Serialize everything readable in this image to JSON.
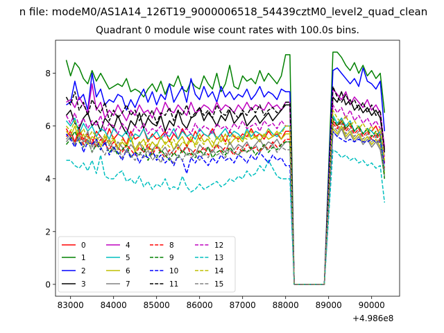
{
  "figure": {
    "suptitle": "n file: modeM0/AS1A14_126T19_9000006518_54439cztM0_level2_quad_clean",
    "title": "Quadrant 0 module wise count rates with 100.0s bins.",
    "x_offset_label": "+4.986e8"
  },
  "chart_data": {
    "type": "line",
    "title": "Quadrant 0 module wise count rates with 100.0s bins.",
    "xlabel": "",
    "ylabel": "",
    "x_offset": 498600000,
    "xlim": [
      82650,
      90650
    ],
    "ylim": [
      -0.45,
      9.25
    ],
    "xticks": [
      83000,
      84000,
      85000,
      86000,
      87000,
      88000,
      89000,
      90000
    ],
    "xtick_labels": [
      "83000",
      "84000",
      "85000",
      "86000",
      "87000",
      "88000",
      "89000",
      "90000"
    ],
    "yticks": [
      0,
      2,
      4,
      6,
      8
    ],
    "ytick_labels": [
      "0",
      "2",
      "4",
      "6",
      "8"
    ],
    "grid": false,
    "legend": {
      "placement": "lower-left",
      "columns": 4
    },
    "x_range": {
      "start": 82900,
      "step": 100,
      "end": 90300
    },
    "gap": {
      "drop_start": 88100,
      "zero_from": 88200,
      "zero_to": 88900,
      "rise_end": 89100
    },
    "series": [
      {
        "name": "0",
        "color": "#ff0000",
        "dash": "solid",
        "before": [
          5.6,
          5.8,
          5.4,
          5.9,
          5.5,
          5.7,
          5.3,
          5.8,
          5.6,
          5.4,
          5.9,
          5.5,
          5.7,
          5.6,
          5.3,
          5.8,
          5.5,
          5.6,
          5.9,
          5.4,
          5.7,
          5.5,
          5.6,
          5.8,
          5.4,
          5.7,
          5.5,
          5.9,
          5.6,
          5.4,
          5.8,
          5.5,
          5.7,
          5.6,
          5.9,
          5.5,
          5.7,
          5.4,
          5.8,
          5.6,
          5.5,
          5.7,
          5.6,
          5.9,
          5.6,
          5.7,
          5.5,
          5.8,
          5.6,
          5.7,
          5.5,
          5.8
        ],
        "after": [
          6.2,
          6.0,
          6.3,
          5.9,
          6.1,
          5.8,
          6.0,
          5.7,
          5.9,
          5.8,
          6.0,
          5.6,
          5.8,
          5.5
        ],
        "last": 4.6
      },
      {
        "name": "1",
        "color": "#008000",
        "dash": "solid",
        "before": [
          8.5,
          7.9,
          8.4,
          8.2,
          7.8,
          7.6,
          8.1,
          7.7,
          8.0,
          7.7,
          7.4,
          7.5,
          7.6,
          7.5,
          7.8,
          7.3,
          7.4,
          7.3,
          7.1,
          7.4,
          7.6,
          7.3,
          7.7,
          7.2,
          7.6,
          7.5,
          7.9,
          7.4,
          7.3,
          7.7,
          7.5,
          7.4,
          7.9,
          7.6,
          7.4,
          8.0,
          7.3,
          7.6,
          8.3,
          7.5,
          7.4,
          7.9,
          7.7,
          7.8,
          7.6,
          8.1,
          7.7,
          8.0,
          7.8,
          7.6,
          7.9,
          8.7
        ],
        "after": [
          8.8,
          8.8,
          8.6,
          8.3,
          8.1,
          8.4,
          8.0,
          8.3,
          7.9,
          8.1,
          7.8,
          8.0,
          7.9,
          7.7
        ],
        "last": 6.5
      },
      {
        "name": "2",
        "color": "#0000ff",
        "dash": "solid",
        "before": [
          6.8,
          6.9,
          7.7,
          7.0,
          7.2,
          6.6,
          8.0,
          7.1,
          7.4,
          6.8,
          7.0,
          6.9,
          7.2,
          7.1,
          6.6,
          7.0,
          6.7,
          7.1,
          7.4,
          6.9,
          7.3,
          6.8,
          7.2,
          7.0,
          7.6,
          6.9,
          7.2,
          7.5,
          6.9,
          7.8,
          7.2,
          7.0,
          7.5,
          7.1,
          7.3,
          6.9,
          7.5,
          7.1,
          7.3,
          7.0,
          7.2,
          7.1,
          7.4,
          7.0,
          7.2,
          7.5,
          7.1,
          7.3,
          7.2,
          7.0,
          7.4,
          7.3
        ],
        "after": [
          8.1,
          8.2,
          8.0,
          7.8,
          7.6,
          7.8,
          7.5,
          8.2,
          7.7,
          7.6,
          7.4,
          7.7,
          7.5,
          7.3
        ],
        "last": 5.8
      },
      {
        "name": "3",
        "color": "#000000",
        "dash": "solid",
        "before": [
          6.4,
          6.6,
          6.1,
          5.9,
          6.3,
          6.5,
          6.0,
          6.2,
          5.8,
          6.3,
          6.1,
          5.9,
          6.4,
          6.0,
          5.7,
          6.2,
          6.0,
          6.5,
          5.9,
          6.3,
          6.1,
          6.0,
          6.4,
          5.8,
          6.2,
          6.0,
          6.6,
          6.1,
          5.9,
          6.3,
          6.4,
          6.7,
          6.2,
          6.5,
          6.3,
          6.0,
          6.4,
          6.2,
          6.6,
          6.1,
          6.3,
          6.5,
          6.0,
          6.2,
          6.4,
          6.1,
          6.3,
          6.5,
          6.2,
          6.4,
          6.6,
          6.8
        ],
        "after": [
          7.1,
          6.9,
          7.3,
          6.8,
          7.0,
          6.6,
          6.8,
          6.5,
          6.7,
          6.4,
          6.6,
          6.3,
          6.4,
          6.2
        ],
        "last": 5.1
      },
      {
        "name": "4",
        "color": "#bf00bf",
        "dash": "solid",
        "before": [
          6.9,
          7.0,
          6.7,
          7.1,
          6.8,
          6.5,
          7.6,
          6.6,
          6.9,
          6.3,
          6.6,
          6.4,
          6.8,
          6.5,
          6.2,
          6.6,
          6.4,
          6.8,
          6.5,
          6.6,
          6.3,
          6.7,
          6.4,
          6.9,
          6.6,
          6.5,
          6.8,
          6.6,
          6.4,
          6.9,
          6.5,
          6.6,
          6.8,
          6.7,
          6.5,
          6.9,
          6.6,
          6.8,
          6.7,
          6.5,
          6.8,
          6.6,
          6.9,
          6.6,
          6.8,
          6.7,
          6.6,
          6.9,
          6.7,
          6.8,
          6.6,
          6.9
        ],
        "after": [
          7.4,
          7.2,
          7.0,
          7.3,
          6.8,
          7.1,
          6.9,
          6.7,
          7.0,
          6.6,
          6.8,
          6.5,
          6.7,
          6.3
        ],
        "last": 5.2
      },
      {
        "name": "5",
        "color": "#00bfbf",
        "dash": "solid",
        "before": [
          6.2,
          6.0,
          6.3,
          5.7,
          6.1,
          5.8,
          6.0,
          5.6,
          5.9,
          5.8,
          5.5,
          5.9,
          5.7,
          5.6,
          5.8,
          5.4,
          5.7,
          5.6,
          5.9,
          5.5,
          5.6,
          5.8,
          5.5,
          5.7,
          5.6,
          5.9,
          5.5,
          5.8,
          5.6,
          5.7,
          5.5,
          5.9,
          5.7,
          5.6,
          5.8,
          5.5,
          5.7,
          5.9,
          5.6,
          5.8,
          5.7,
          5.5,
          5.9,
          5.6,
          5.8,
          5.7,
          5.6,
          5.9,
          5.7,
          5.6,
          5.8,
          6.0
        ],
        "after": [
          6.4,
          6.1,
          6.3,
          6.0,
          6.2,
          5.8,
          6.0,
          5.7,
          5.9,
          5.8,
          5.6,
          5.8,
          5.5,
          5.7
        ],
        "last": 4.3
      },
      {
        "name": "6",
        "color": "#bfbf00",
        "dash": "solid",
        "before": [
          5.8,
          5.6,
          6.0,
          5.4,
          5.7,
          5.3,
          5.6,
          5.5,
          5.2,
          5.6,
          5.3,
          5.5,
          5.1,
          5.4,
          5.2,
          5.6,
          5.0,
          5.3,
          5.5,
          5.1,
          5.4,
          5.2,
          5.6,
          5.3,
          5.5,
          5.1,
          5.4,
          5.6,
          5.2,
          5.5,
          5.3,
          5.7,
          5.4,
          5.5,
          5.2,
          5.6,
          5.4,
          5.7,
          5.3,
          5.5,
          5.6,
          5.4,
          5.8,
          5.5,
          5.6,
          5.4,
          5.7,
          5.5,
          5.6,
          5.8,
          5.5,
          5.7
        ],
        "after": [
          5.9,
          5.7,
          6.0,
          5.6,
          5.8,
          5.5,
          5.7,
          5.4,
          5.6,
          5.3,
          5.5,
          5.2,
          5.4,
          5.1
        ],
        "last": 4.2
      },
      {
        "name": "7",
        "color": "#808080",
        "dash": "solid",
        "before": [
          5.4,
          5.6,
          5.3,
          5.7,
          5.4,
          5.8,
          5.2,
          5.5,
          5.6,
          5.3,
          5.5,
          5.1,
          5.4,
          5.2,
          5.0,
          5.3,
          5.1,
          5.4,
          5.0,
          5.2,
          5.1,
          5.3,
          5.0,
          5.2,
          4.9,
          5.1,
          5.3,
          5.0,
          5.2,
          5.1,
          4.9,
          5.3,
          5.1,
          5.2,
          5.0,
          5.3,
          5.2,
          5.0,
          5.4,
          5.1,
          5.3,
          5.2,
          5.4,
          5.1,
          5.3,
          5.5,
          5.2,
          5.4,
          5.3,
          5.5,
          5.2,
          5.4
        ],
        "after": [
          5.8,
          5.6,
          5.9,
          5.5,
          5.7,
          5.4,
          5.6,
          5.3,
          5.5,
          5.2,
          5.4,
          5.1,
          5.3,
          5.0
        ],
        "last": 4.1
      },
      {
        "name": "8",
        "color": "#ff0000",
        "dash": "dashed",
        "before": [
          5.9,
          5.6,
          5.4,
          5.8,
          5.3,
          5.6,
          5.5,
          5.2,
          5.5,
          5.3,
          5.1,
          5.4,
          5.2,
          5.0,
          5.3,
          5.1,
          4.9,
          5.2,
          5.0,
          5.3,
          4.9,
          5.2,
          5.0,
          4.8,
          5.1,
          4.9,
          5.2,
          5.0,
          5.3,
          4.9,
          5.1,
          5.0,
          5.2,
          4.9,
          5.1,
          5.3,
          5.0,
          5.2,
          5.1,
          4.9,
          5.2,
          5.0,
          5.3,
          5.1,
          5.2,
          5.0,
          5.3,
          5.1,
          5.4,
          5.2,
          5.3,
          5.5
        ],
        "after": [
          6.1,
          5.9,
          6.2,
          5.8,
          6.0,
          5.7,
          5.9,
          5.6,
          5.8,
          5.5,
          5.7,
          5.4,
          5.6,
          5.3
        ],
        "last": 4.4
      },
      {
        "name": "9",
        "color": "#008000",
        "dash": "dashed",
        "before": [
          5.3,
          5.5,
          5.8,
          5.4,
          5.2,
          5.5,
          5.0,
          5.3,
          5.1,
          5.4,
          5.0,
          5.2,
          4.9,
          5.1,
          5.3,
          4.8,
          5.0,
          4.9,
          5.2,
          4.7,
          5.0,
          4.8,
          5.1,
          4.9,
          4.7,
          5.0,
          4.8,
          5.1,
          4.9,
          5.0,
          4.8,
          5.1,
          4.9,
          5.2,
          4.8,
          5.0,
          5.1,
          4.9,
          5.2,
          5.0,
          4.9,
          5.1,
          5.0,
          5.2,
          4.9,
          5.1,
          5.3,
          5.0,
          5.2,
          5.1,
          5.3,
          5.4
        ],
        "after": [
          6.3,
          6.0,
          6.2,
          5.9,
          6.1,
          5.8,
          6.0,
          5.7,
          5.9,
          5.6,
          5.8,
          5.5,
          5.7,
          5.4
        ],
        "last": 4.0
      },
      {
        "name": "10",
        "color": "#0000ff",
        "dash": "dashed",
        "before": [
          5.7,
          5.5,
          5.2,
          5.6,
          5.0,
          5.4,
          5.3,
          5.5,
          5.1,
          5.4,
          4.9,
          5.2,
          5.0,
          4.7,
          5.1,
          4.8,
          5.0,
          4.6,
          4.9,
          4.8,
          5.1,
          4.7,
          4.9,
          4.6,
          4.8,
          4.5,
          4.9,
          4.7,
          4.2,
          4.8,
          4.6,
          4.9,
          4.7,
          4.5,
          4.8,
          4.6,
          4.9,
          4.7,
          4.8,
          4.6,
          4.9,
          4.8,
          4.6,
          4.9,
          4.7,
          5.0,
          4.8,
          4.6,
          4.9,
          4.7,
          4.8,
          4.5
        ],
        "after": [
          5.8,
          5.6,
          5.5,
          5.4,
          5.5,
          5.4,
          5.5,
          5.4,
          5.4,
          5.5,
          5.4,
          5.4,
          5.5,
          5.4
        ],
        "last": 4.5
      },
      {
        "name": "11",
        "color": "#000000",
        "dash": "dashed",
        "before": [
          7.1,
          6.8,
          7.3,
          6.6,
          6.9,
          6.4,
          7.0,
          6.7,
          6.5,
          6.9,
          6.2,
          6.6,
          6.3,
          6.5,
          6.8,
          6.4,
          6.6,
          6.2,
          6.5,
          6.3,
          6.6,
          6.1,
          6.5,
          6.4,
          6.7,
          6.2,
          6.6,
          6.4,
          6.8,
          6.3,
          6.5,
          6.7,
          6.4,
          6.6,
          6.3,
          6.8,
          6.5,
          6.4,
          6.7,
          6.5,
          6.3,
          6.6,
          6.4,
          6.7,
          6.5,
          6.8,
          6.4,
          6.6,
          6.7,
          6.5,
          6.6,
          6.9
        ],
        "after": [
          7.5,
          7.1,
          6.9,
          7.2,
          6.8,
          7.0,
          6.6,
          6.9,
          6.5,
          6.8,
          6.4,
          6.6,
          6.3,
          6.5
        ],
        "last": 5.0
      },
      {
        "name": "12",
        "color": "#bf00bf",
        "dash": "dashed",
        "before": [
          6.4,
          6.1,
          6.5,
          6.0,
          6.3,
          5.9,
          6.2,
          6.0,
          6.4,
          5.8,
          6.1,
          6.0,
          5.7,
          6.1,
          5.9,
          5.6,
          6.0,
          5.8,
          6.1,
          5.7,
          5.9,
          5.8,
          6.0,
          5.6,
          5.9,
          5.7,
          6.0,
          5.8,
          5.9,
          5.7,
          6.1,
          5.8,
          6.0,
          5.9,
          5.7,
          6.1,
          5.9,
          6.0,
          5.8,
          6.1,
          5.9,
          6.2,
          5.9,
          6.0,
          6.1,
          5.8,
          6.2,
          6.0,
          6.1,
          5.9,
          6.2,
          6.0
        ],
        "after": [
          6.8,
          6.5,
          6.7,
          6.3,
          6.6,
          6.2,
          6.4,
          6.1,
          6.3,
          6.0,
          6.2,
          5.9,
          6.1,
          5.8
        ],
        "last": 4.8
      },
      {
        "name": "13",
        "color": "#00bfbf",
        "dash": "dashed",
        "before": [
          4.7,
          4.7,
          4.5,
          4.4,
          4.6,
          4.3,
          4.7,
          4.2,
          4.9,
          4.1,
          4.0,
          4.0,
          4.2,
          4.3,
          3.9,
          4.0,
          3.8,
          4.1,
          3.7,
          3.9,
          3.6,
          3.8,
          3.7,
          4.0,
          3.6,
          3.7,
          3.6,
          4.1,
          3.7,
          3.5,
          3.6,
          3.8,
          3.6,
          3.7,
          3.8,
          3.9,
          3.7,
          3.8,
          4.0,
          3.9,
          4.1,
          4.0,
          4.3,
          4.1,
          4.2,
          4.5,
          4.3,
          4.7,
          4.4,
          4.1,
          4.0,
          4.0
        ],
        "after": [
          5.1,
          5.0,
          4.8,
          4.9,
          4.7,
          4.8,
          4.6,
          4.7,
          4.5,
          4.6,
          4.4,
          4.5,
          4.3,
          3.9
        ],
        "last": 3.1
      },
      {
        "name": "14",
        "color": "#bfbf00",
        "dash": "dashed",
        "before": [
          6.0,
          5.8,
          6.2,
          5.6,
          5.9,
          5.5,
          5.8,
          5.6,
          5.3,
          5.7,
          5.4,
          5.6,
          5.2,
          5.5,
          5.3,
          5.6,
          5.1,
          5.4,
          5.2,
          5.5,
          5.0,
          5.3,
          5.1,
          5.4,
          5.2,
          5.5,
          5.1,
          5.4,
          5.3,
          5.6,
          5.2,
          5.5,
          5.3,
          5.6,
          5.4,
          5.2,
          5.6,
          5.3,
          5.5,
          5.7,
          5.4,
          5.6,
          5.5,
          5.8,
          5.5,
          5.7,
          5.6,
          5.9,
          5.6,
          5.8,
          5.7,
          6.0
        ],
        "after": [
          6.6,
          6.3,
          6.1,
          6.4,
          6.0,
          6.2,
          5.9,
          6.1,
          5.8,
          6.0,
          5.7,
          5.9,
          5.6,
          5.8
        ],
        "last": 4.7
      },
      {
        "name": "15",
        "color": "#808080",
        "dash": "dashed",
        "before": [
          5.5,
          5.7,
          5.3,
          5.6,
          5.2,
          5.5,
          5.0,
          5.4,
          5.2,
          4.9,
          5.3,
          5.0,
          5.2,
          4.8,
          5.1,
          4.9,
          4.7,
          5.0,
          4.8,
          5.1,
          4.7,
          4.9,
          4.6,
          5.0,
          4.8,
          4.6,
          4.9,
          4.7,
          5.0,
          4.8,
          4.9,
          4.7,
          5.0,
          4.8,
          5.1,
          4.9,
          5.0,
          4.8,
          5.1,
          5.0,
          4.9,
          5.2,
          5.0,
          5.1,
          5.3,
          5.0,
          5.2,
          5.1,
          5.3,
          5.0,
          5.2,
          5.1
        ],
        "after": [
          6.0,
          5.8,
          6.1,
          5.7,
          5.9,
          5.6,
          5.8,
          5.5,
          5.7,
          5.4,
          5.6,
          5.3,
          5.5,
          5.2
        ],
        "last": 4.3
      }
    ]
  }
}
